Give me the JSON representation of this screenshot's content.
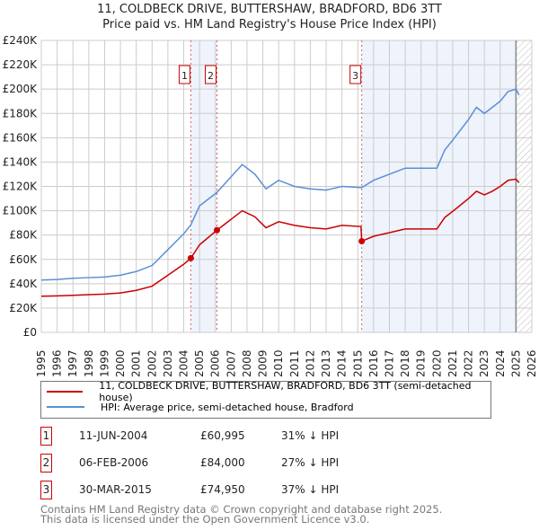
{
  "chart_data": {
    "type": "line",
    "title": "11, COLDBECK DRIVE, BUTTERSHAW, BRADFORD, BD6 3TT",
    "subtitle": "Price paid vs. HM Land Registry's House Price Index (HPI)",
    "xlim": [
      1995,
      2026
    ],
    "ylim": [
      0,
      240000
    ],
    "x_ticks": [
      "1995",
      "1996",
      "1997",
      "1998",
      "1999",
      "2000",
      "2001",
      "2002",
      "2003",
      "2004",
      "2005",
      "2006",
      "2007",
      "2008",
      "2009",
      "2010",
      "2011",
      "2012",
      "2013",
      "2014",
      "2015",
      "2016",
      "2017",
      "2018",
      "2019",
      "2020",
      "2021",
      "2022",
      "2023",
      "2024",
      "2025",
      "2026"
    ],
    "y_ticks": [
      {
        "v": 0,
        "label": "£0"
      },
      {
        "v": 20000,
        "label": "£20K"
      },
      {
        "v": 40000,
        "label": "£40K"
      },
      {
        "v": 60000,
        "label": "£60K"
      },
      {
        "v": 80000,
        "label": "£80K"
      },
      {
        "v": 100000,
        "label": "£100K"
      },
      {
        "v": 120000,
        "label": "£120K"
      },
      {
        "v": 140000,
        "label": "£140K"
      },
      {
        "v": 160000,
        "label": "£160K"
      },
      {
        "v": 180000,
        "label": "£180K"
      },
      {
        "v": 200000,
        "label": "£200K"
      },
      {
        "v": 220000,
        "label": "£220K"
      },
      {
        "v": 240000,
        "label": "£240K"
      }
    ],
    "grid": true,
    "series": [
      {
        "name": "11, COLDBECK DRIVE, BUTTERSHAW, BRADFORD, BD6 3TT (semi-detached house)",
        "color": "#cc0000",
        "x": [
          1995,
          1996,
          1997,
          1998,
          1999,
          2000,
          2001,
          2002,
          2003,
          2004,
          2004.45,
          2005,
          2006.1,
          2007,
          2007.7,
          2008.5,
          2009.2,
          2010,
          2011,
          2012,
          2013,
          2014,
          2015.2,
          2015.25,
          2016,
          2017,
          2018,
          2019,
          2020,
          2020.5,
          2021,
          2022,
          2022.5,
          2023,
          2023.5,
          2024,
          2024.5,
          2025,
          2025.2
        ],
        "y": [
          29700,
          30000,
          30500,
          31000,
          31500,
          32400,
          34500,
          38000,
          47000,
          56000,
          60995,
          72000,
          84000,
          93000,
          100000,
          95000,
          86000,
          91000,
          88000,
          86000,
          85000,
          88000,
          87000,
          74950,
          79000,
          82000,
          85000,
          85000,
          85000,
          94500,
          99500,
          110000,
          116000,
          113000,
          116000,
          120000,
          125000,
          126000,
          123000
        ]
      },
      {
        "name": "HPI: Average price, semi-detached house, Bradford",
        "color": "#5b8fd6",
        "x": [
          1995,
          1996,
          1997,
          1998,
          1999,
          2000,
          2001,
          2002,
          2003,
          2004,
          2004.45,
          2005,
          2006.1,
          2007,
          2007.7,
          2008.5,
          2009.2,
          2010,
          2011,
          2012,
          2013,
          2014,
          2015.25,
          2016,
          2017,
          2018,
          2019,
          2020,
          2020.5,
          2021,
          2022,
          2022.5,
          2023,
          2023.5,
          2024,
          2024.5,
          2025,
          2025.2
        ],
        "y": [
          43000,
          43500,
          44500,
          45000,
          45500,
          47000,
          50000,
          55000,
          68000,
          81000,
          88400,
          104000,
          115000,
          128000,
          138000,
          130000,
          118000,
          125000,
          120000,
          118000,
          117000,
          120000,
          119000,
          125000,
          130000,
          135000,
          135000,
          135000,
          150000,
          158000,
          175000,
          185000,
          180000,
          185000,
          190000,
          198000,
          200000,
          195000
        ]
      }
    ],
    "sales": [
      {
        "n": "1",
        "x": 2004.45,
        "price": 60995,
        "date": "11-JUN-2004",
        "price_label": "£60,995",
        "diff": "31% ↓ HPI"
      },
      {
        "n": "2",
        "x": 2006.1,
        "price": 84000,
        "date": "06-FEB-2006",
        "price_label": "£84,000",
        "diff": "27% ↓ HPI"
      },
      {
        "n": "3",
        "x": 2015.25,
        "price": 74950,
        "date": "30-MAR-2015",
        "price_label": "£74,950",
        "diff": "37% ↓ HPI"
      }
    ],
    "shaded_ranges": [
      [
        2004.45,
        2006.1
      ],
      [
        2015.25,
        2025.0
      ]
    ],
    "hatched_from": 2025.0
  },
  "footer": [
    "Contains HM Land Registry data © Crown copyright and database right 2025.",
    "This data is licensed under the Open Government Licence v3.0."
  ]
}
